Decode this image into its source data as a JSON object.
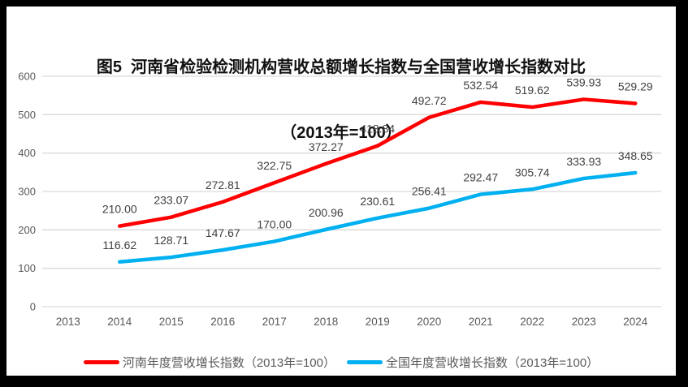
{
  "chart_data": {
    "type": "line",
    "title": "图5  河南省检验检测机构营收总额增长指数与全国营收增长指数对比",
    "subtitle": "（2013年=100）",
    "categories": [
      "2013",
      "2014",
      "2015",
      "2016",
      "2017",
      "2018",
      "2019",
      "2020",
      "2021",
      "2022",
      "2023",
      "2024"
    ],
    "series": [
      {
        "name": "河南年度营收增长指数（2013年=100）",
        "color": "#fe0000",
        "values": [
          null,
          210.0,
          233.07,
          272.81,
          322.75,
          372.27,
          418.84,
          492.72,
          532.54,
          519.62,
          539.93,
          529.29
        ]
      },
      {
        "name": "全国年度营收增长指数（2013年=100）",
        "color": "#00b0f0",
        "values": [
          null,
          116.62,
          128.71,
          147.67,
          170.0,
          200.96,
          230.61,
          256.41,
          292.47,
          305.74,
          333.93,
          348.65
        ]
      }
    ],
    "ylim": [
      0,
      600
    ],
    "ytick_step": 100,
    "yticks": [
      0,
      100,
      200,
      300,
      400,
      500,
      600
    ],
    "grid": true,
    "gridline_color": "#d9d9d9",
    "axis_label_color": "#595959",
    "data_label_color": "#404040",
    "data_labels": true,
    "data_label_decimals": 2,
    "legend_position": "bottom"
  }
}
